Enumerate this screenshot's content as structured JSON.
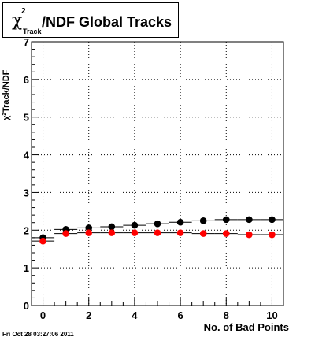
{
  "title": {
    "symbol": "χ",
    "superscript": "2",
    "subscript": "Track",
    "text": "/NDF  Global Tracks"
  },
  "axes": {
    "ylabel": "χ²Track/NDF",
    "xlabel": "No. of Bad Points"
  },
  "footer": {
    "date": "Fri Oct 28 03:27:06 2011"
  },
  "colors": {
    "series_black": "#000000",
    "series_red": "#ff0000",
    "grid": "#000000",
    "background": "#ffffff"
  },
  "chart_data": {
    "type": "scatter",
    "title": "χ²Track/NDF  Global Tracks",
    "xlabel": "No. of Bad Points",
    "ylabel": "χ²Track/NDF",
    "xlim": [
      -0.5,
      10.5
    ],
    "ylim": [
      0,
      7
    ],
    "x_ticks": [
      0,
      2,
      4,
      6,
      8,
      10
    ],
    "y_ticks": [
      0,
      1,
      2,
      3,
      4,
      5,
      6,
      7
    ],
    "grid": true,
    "x": [
      0,
      1,
      2,
      3,
      4,
      5,
      6,
      7,
      8,
      9,
      10
    ],
    "series": [
      {
        "color": "#000000",
        "values": [
          1.8,
          2.02,
          2.06,
          2.09,
          2.13,
          2.17,
          2.21,
          2.25,
          2.28,
          2.28,
          2.28
        ]
      },
      {
        "color": "#ff0000",
        "values": [
          1.71,
          1.91,
          1.93,
          1.93,
          1.93,
          1.93,
          1.93,
          1.91,
          1.91,
          1.88,
          1.88
        ]
      }
    ]
  }
}
